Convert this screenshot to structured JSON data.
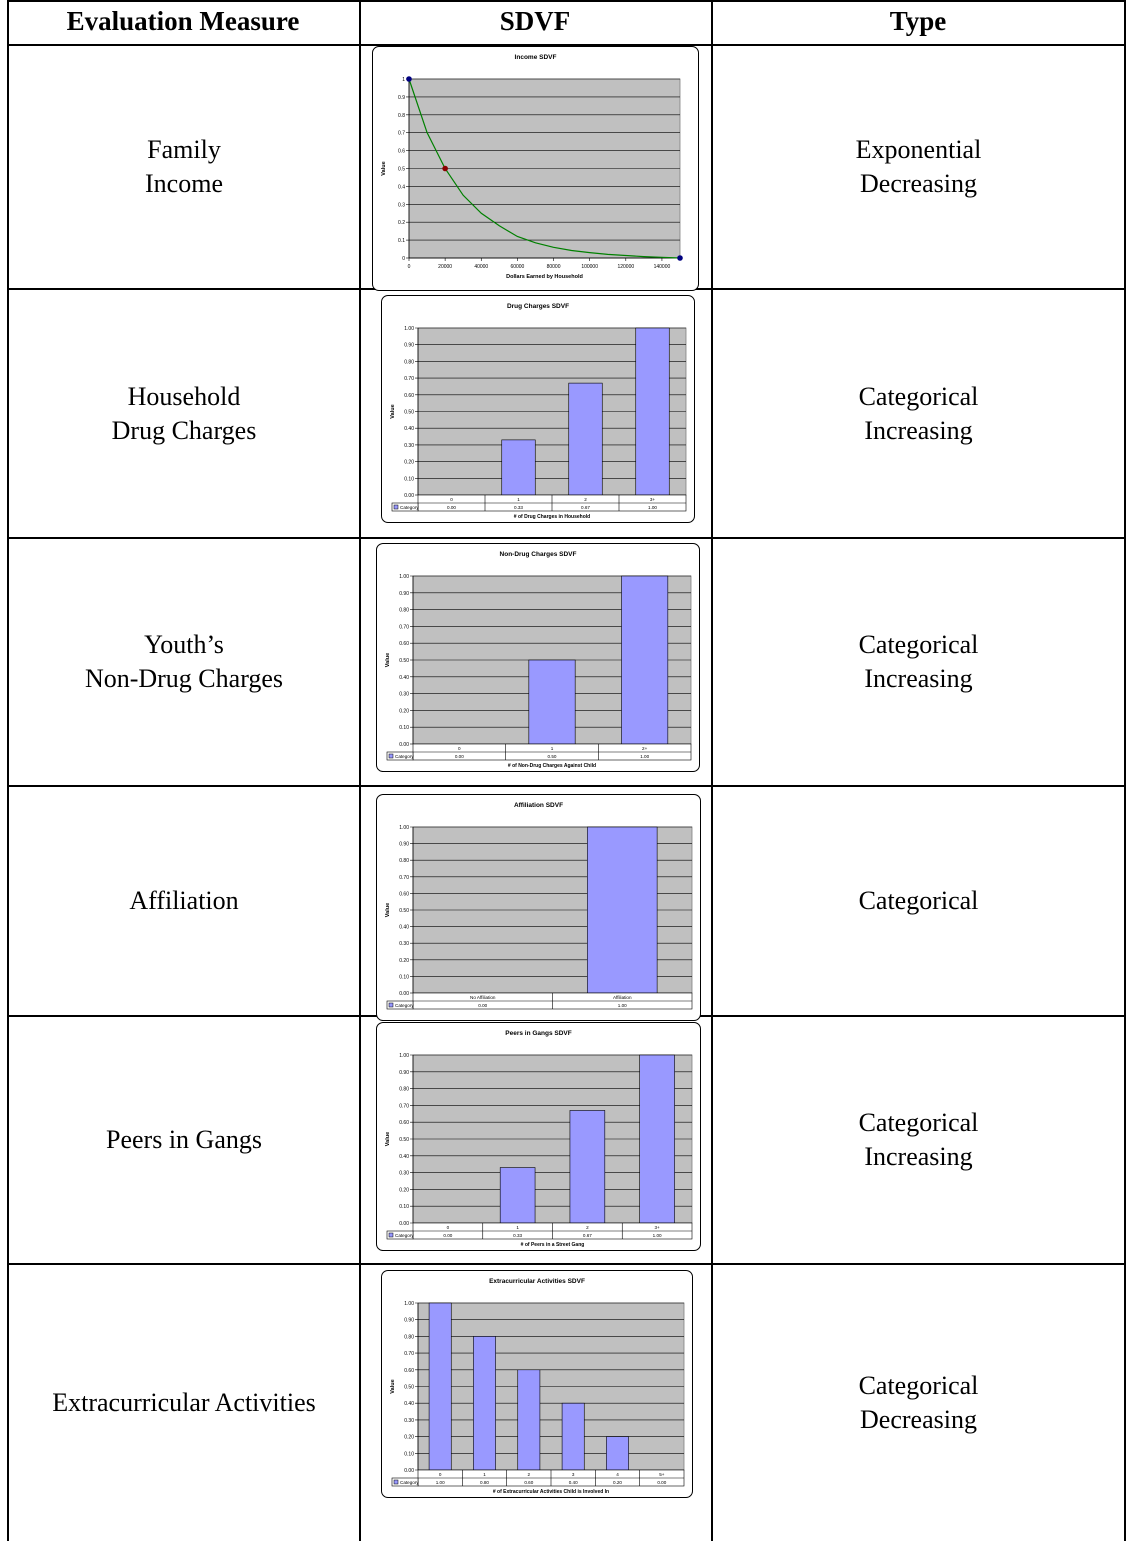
{
  "table": {
    "headers": {
      "measure": "Evaluation Measure",
      "sdvf": "SDVF",
      "type": "Type"
    },
    "rows": [
      {
        "measure": [
          "Family",
          "Income"
        ],
        "type": [
          "Exponential",
          "Decreasing"
        ]
      },
      {
        "measure": [
          "Household",
          "Drug Charges"
        ],
        "type": [
          "Categorical",
          "Increasing"
        ]
      },
      {
        "measure": [
          "Youth’s",
          "Non-Drug Charges"
        ],
        "type": [
          "Categorical",
          "Increasing"
        ]
      },
      {
        "measure": [
          "Affiliation"
        ],
        "type": [
          "Categorical"
        ]
      },
      {
        "measure": [
          "Peers in Gangs"
        ],
        "type": [
          "Categorical",
          "Increasing"
        ]
      },
      {
        "measure": [
          "Extracurricular Activities"
        ],
        "type": [
          "Categorical",
          "Decreasing"
        ]
      }
    ]
  },
  "chart_data": [
    {
      "type": "line",
      "title": "Income SDVF",
      "xlabel": "Dollars Earned by Household",
      "ylabel": "Value",
      "xlim": [
        0,
        150000
      ],
      "ylim": [
        0,
        1
      ],
      "xticks": [
        "0",
        "20000",
        "40000",
        "60000",
        "80000",
        "100000",
        "120000",
        "140000"
      ],
      "yticks": [
        "0",
        "0.1",
        "0.2",
        "0.3",
        "0.4",
        "0.5",
        "0.6",
        "0.7",
        "0.8",
        "0.9",
        "1"
      ],
      "grid": true,
      "series": [
        {
          "x": [
            0,
            10000,
            20000,
            30000,
            40000,
            50000,
            60000,
            70000,
            80000,
            90000,
            100000,
            110000,
            120000,
            130000,
            140000,
            150000
          ],
          "y": [
            1.0,
            0.7,
            0.5,
            0.35,
            0.25,
            0.18,
            0.12,
            0.085,
            0.06,
            0.042,
            0.03,
            0.02,
            0.014,
            0.008,
            0.004,
            0.0
          ]
        }
      ],
      "markers": [
        {
          "x": 0,
          "y": 1.0,
          "color": "#000080"
        },
        {
          "x": 20000,
          "y": 0.5,
          "color": "#8b0000"
        },
        {
          "x": 150000,
          "y": 0.0,
          "color": "#000080"
        }
      ],
      "colors": {
        "line": "#008000",
        "plot_bg": "#c0c0c0"
      }
    },
    {
      "type": "bar",
      "title": "Drug Charges SDVF",
      "xlabel": "# of Drug Charges in Household",
      "ylabel": "Value",
      "categories": [
        "0",
        "1",
        "2",
        "3+"
      ],
      "values": [
        0.0,
        0.33,
        0.67,
        1.0
      ],
      "value_labels": [
        "0.00",
        "0.33",
        "0.67",
        "1.00"
      ],
      "legend": "Category",
      "ylim": [
        0,
        1
      ],
      "yticks": [
        "0.00",
        "0.10",
        "0.20",
        "0.30",
        "0.40",
        "0.50",
        "0.60",
        "0.70",
        "0.80",
        "0.90",
        "1.00"
      ],
      "grid": true,
      "colors": {
        "bar": "#9999ff",
        "plot_bg": "#c0c0c0"
      }
    },
    {
      "type": "bar",
      "title": "Non-Drug Charges SDVF",
      "xlabel": "# of Non-Drug Charges Against Child",
      "ylabel": "Value",
      "categories": [
        "0",
        "1",
        "2+"
      ],
      "values": [
        0.0,
        0.5,
        1.0
      ],
      "value_labels": [
        "0.00",
        "0.50",
        "1.00"
      ],
      "legend": "Category",
      "ylim": [
        0,
        1
      ],
      "yticks": [
        "0.00",
        "0.10",
        "0.20",
        "0.30",
        "0.40",
        "0.50",
        "0.60",
        "0.70",
        "0.80",
        "0.90",
        "1.00"
      ],
      "grid": true,
      "colors": {
        "bar": "#9999ff",
        "plot_bg": "#c0c0c0"
      }
    },
    {
      "type": "bar",
      "title": "Affiliation SDVF",
      "xlabel": "",
      "ylabel": "Value",
      "categories": [
        "No Affiliation",
        "Affiliation"
      ],
      "values": [
        0.0,
        1.0
      ],
      "value_labels": [
        "0.00",
        "1.00"
      ],
      "legend": "Category",
      "ylim": [
        0,
        1
      ],
      "yticks": [
        "0.00",
        "0.10",
        "0.20",
        "0.30",
        "0.40",
        "0.50",
        "0.60",
        "0.70",
        "0.80",
        "0.90",
        "1.00"
      ],
      "grid": true,
      "colors": {
        "bar": "#9999ff",
        "plot_bg": "#c0c0c0"
      }
    },
    {
      "type": "bar",
      "title": "Peers in Gangs SDVF",
      "xlabel": "# of Peers in a Street Gang",
      "ylabel": "Value",
      "categories": [
        "0",
        "1",
        "2",
        "3+"
      ],
      "values": [
        0.0,
        0.33,
        0.67,
        1.0
      ],
      "value_labels": [
        "0.00",
        "0.33",
        "0.67",
        "1.00"
      ],
      "legend": "Category",
      "ylim": [
        0,
        1
      ],
      "yticks": [
        "0.00",
        "0.10",
        "0.20",
        "0.30",
        "0.40",
        "0.50",
        "0.60",
        "0.70",
        "0.80",
        "0.90",
        "1.00"
      ],
      "grid": true,
      "colors": {
        "bar": "#9999ff",
        "plot_bg": "#c0c0c0"
      }
    },
    {
      "type": "bar",
      "title": "Extracurricular Activities SDVF",
      "xlabel": "# of Extracurricular Activities Child is Involved In",
      "ylabel": "Value",
      "categories": [
        "0",
        "1",
        "2",
        "3",
        "4",
        "5+"
      ],
      "values": [
        1.0,
        0.8,
        0.6,
        0.4,
        0.2,
        0.0
      ],
      "value_labels": [
        "1.00",
        "0.80",
        "0.60",
        "0.40",
        "0.20",
        "0.00"
      ],
      "legend": "Category",
      "ylim": [
        0,
        1
      ],
      "yticks": [
        "0.00",
        "0.10",
        "0.20",
        "0.30",
        "0.40",
        "0.50",
        "0.60",
        "0.70",
        "0.80",
        "0.90",
        "1.00"
      ],
      "grid": true,
      "colors": {
        "bar": "#9999ff",
        "plot_bg": "#c0c0c0"
      }
    }
  ]
}
